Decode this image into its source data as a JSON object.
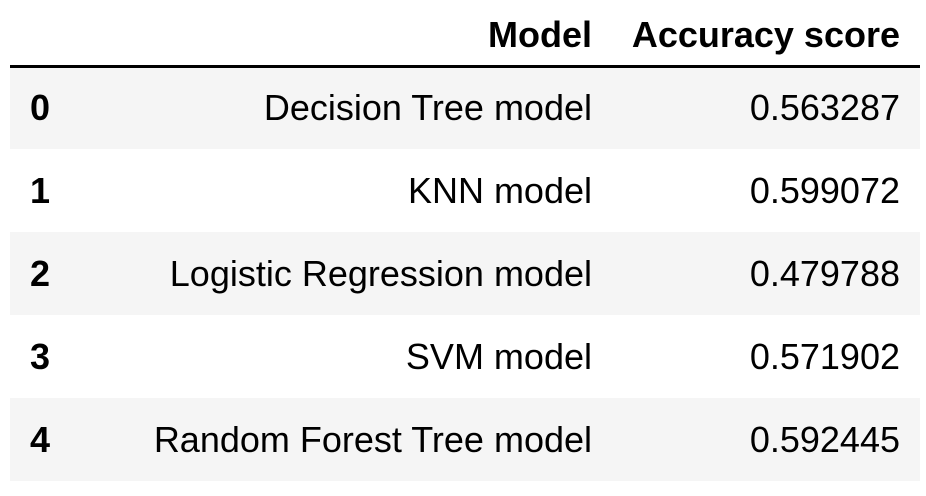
{
  "table": {
    "columns": {
      "index": "",
      "model": "Model",
      "accuracy": "Accuracy score"
    },
    "rows": [
      {
        "index": "0",
        "model": "Decision Tree model",
        "accuracy": "0.563287"
      },
      {
        "index": "1",
        "model": "KNN model",
        "accuracy": "0.599072"
      },
      {
        "index": "2",
        "model": "Logistic Regression model",
        "accuracy": "0.479788"
      },
      {
        "index": "3",
        "model": "SVM model",
        "accuracy": "0.571902"
      },
      {
        "index": "4",
        "model": "Random Forest Tree model",
        "accuracy": "0.592445"
      }
    ]
  },
  "colors": {
    "row_stripe": "#f5f5f5",
    "header_rule": "#000000",
    "text": "#000000"
  }
}
